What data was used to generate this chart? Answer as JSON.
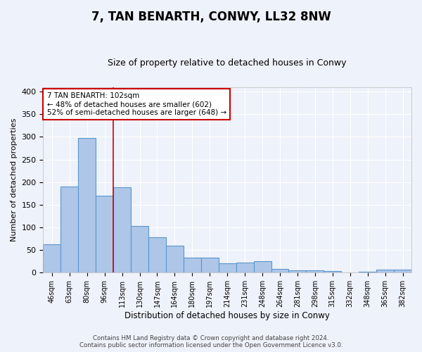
{
  "title": "7, TAN BENARTH, CONWY, LL32 8NW",
  "subtitle": "Size of property relative to detached houses in Conwy",
  "xlabel": "Distribution of detached houses by size in Conwy",
  "ylabel": "Number of detached properties",
  "categories": [
    "46sqm",
    "63sqm",
    "80sqm",
    "96sqm",
    "113sqm",
    "130sqm",
    "147sqm",
    "164sqm",
    "180sqm",
    "197sqm",
    "214sqm",
    "231sqm",
    "248sqm",
    "264sqm",
    "281sqm",
    "298sqm",
    "315sqm",
    "332sqm",
    "348sqm",
    "365sqm",
    "382sqm"
  ],
  "values": [
    63,
    190,
    298,
    170,
    188,
    104,
    79,
    60,
    33,
    33,
    21,
    22,
    25,
    9,
    5,
    5,
    4,
    0,
    2,
    7,
    7
  ],
  "bar_color": "#aec6e8",
  "bar_edge_color": "#5a96cc",
  "background_color": "#eef2fa",
  "grid_color": "#ffffff",
  "annotation_line1": "7 TAN BENARTH: 102sqm",
  "annotation_line2": "← 48% of detached houses are smaller (602)",
  "annotation_line3": "52% of semi-detached houses are larger (648) →",
  "annotation_box_color": "#ffffff",
  "annotation_box_edge_color": "#cc0000",
  "vline_x": 3.5,
  "vline_color": "#cc0000",
  "ylim": [
    0,
    410
  ],
  "yticks": [
    0,
    50,
    100,
    150,
    200,
    250,
    300,
    350,
    400
  ],
  "footer": "Contains HM Land Registry data © Crown copyright and database right 2024.\nContains public sector information licensed under the Open Government Licence v3.0."
}
